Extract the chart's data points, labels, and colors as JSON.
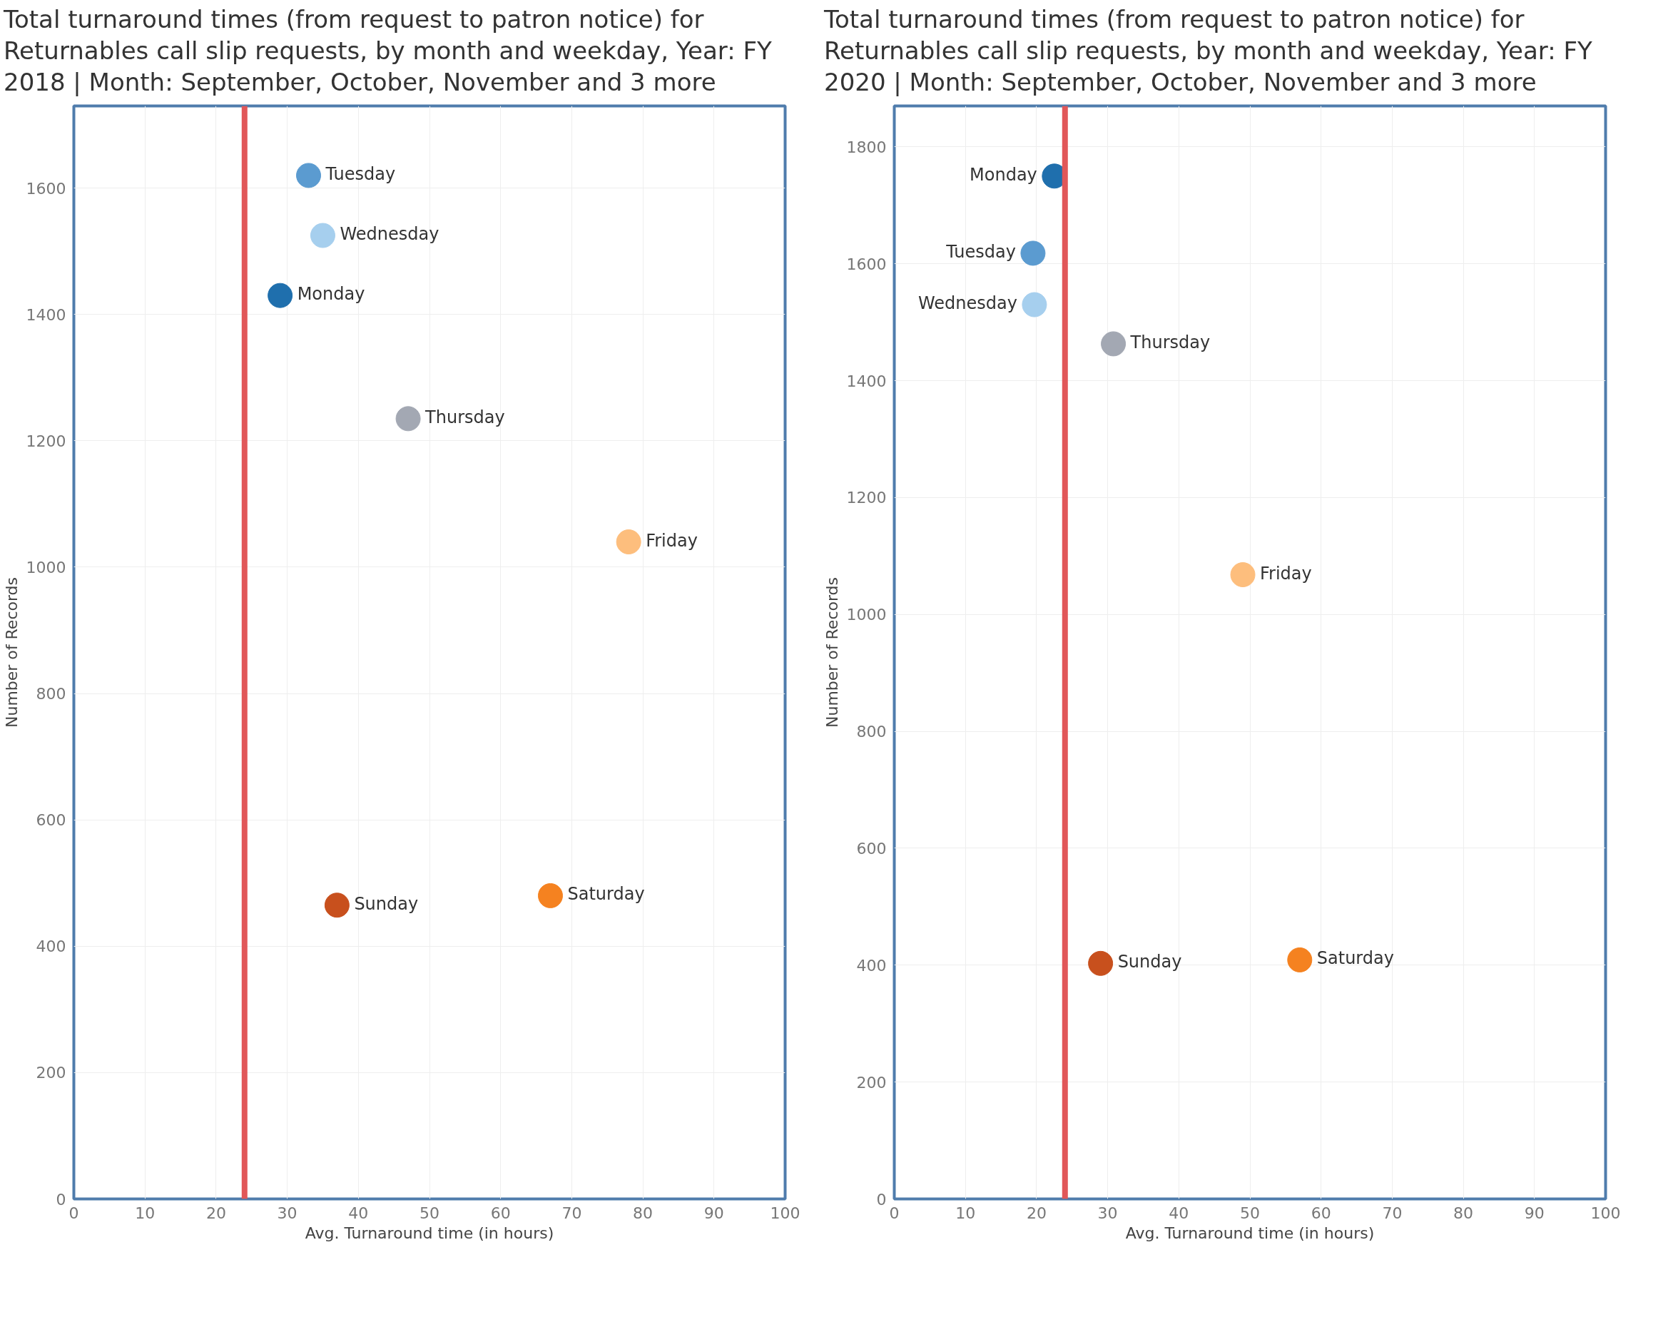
{
  "chart_data": [
    {
      "type": "scatter",
      "title": "Total turnaround times (from request to patron notice) for Returnables call slip requests, by month and weekday, Year: FY 2018 | Month: September, October, November and 3 more",
      "xlabel": "Avg. Turnaround time (in hours)",
      "ylabel": "Number of Records",
      "xlim": [
        0,
        100
      ],
      "ylim": [
        0,
        1730
      ],
      "xticks": [
        0,
        10,
        20,
        30,
        40,
        50,
        60,
        70,
        80,
        90,
        100
      ],
      "yticks": [
        0,
        200,
        400,
        600,
        800,
        1000,
        1200,
        1400,
        1600
      ],
      "grid": true,
      "marker": "circle",
      "ref_lines": [
        {
          "axis": "x",
          "value": 24,
          "color": "#e15759"
        }
      ],
      "series": [
        {
          "name": "Monday",
          "color": "#1f6fad",
          "x": [
            29
          ],
          "values": [
            1430
          ]
        },
        {
          "name": "Tuesday",
          "color": "#5b9bd0",
          "x": [
            33
          ],
          "values": [
            1620
          ]
        },
        {
          "name": "Wednesday",
          "color": "#a6cfee",
          "x": [
            35
          ],
          "values": [
            1525
          ]
        },
        {
          "name": "Thursday",
          "color": "#a3a8b3",
          "x": [
            47
          ],
          "values": [
            1235
          ]
        },
        {
          "name": "Friday",
          "color": "#fdbe7d",
          "x": [
            78
          ],
          "values": [
            1040
          ]
        },
        {
          "name": "Saturday",
          "color": "#f58220",
          "x": [
            67
          ],
          "values": [
            480
          ]
        },
        {
          "name": "Sunday",
          "color": "#c8501d",
          "x": [
            37
          ],
          "values": [
            465
          ]
        }
      ]
    },
    {
      "type": "scatter",
      "title": "Total turnaround times (from request to patron notice) for Returnables call slip requests, by month and weekday, Year: FY 2020 | Month: September, October, November and 3 more",
      "xlabel": "Avg. Turnaround time (in hours)",
      "ylabel": "Number of Records",
      "xlim": [
        0,
        100
      ],
      "ylim": [
        0,
        1870
      ],
      "xticks": [
        0,
        10,
        20,
        30,
        40,
        50,
        60,
        70,
        80,
        90,
        100
      ],
      "yticks": [
        0,
        200,
        400,
        600,
        800,
        1000,
        1200,
        1400,
        1600,
        1800
      ],
      "grid": true,
      "marker": "circle",
      "ref_lines": [
        {
          "axis": "x",
          "value": 24,
          "color": "#e15759"
        }
      ],
      "series": [
        {
          "name": "Monday",
          "color": "#1f6fad",
          "x": [
            22.5
          ],
          "values": [
            1750
          ]
        },
        {
          "name": "Tuesday",
          "color": "#5b9bd0",
          "x": [
            19.5
          ],
          "values": [
            1618
          ]
        },
        {
          "name": "Wednesday",
          "color": "#a6cfee",
          "x": [
            19.7
          ],
          "values": [
            1530
          ]
        },
        {
          "name": "Thursday",
          "color": "#a3a8b3",
          "x": [
            30.8
          ],
          "values": [
            1463
          ]
        },
        {
          "name": "Friday",
          "color": "#fdbe7d",
          "x": [
            49
          ],
          "values": [
            1068
          ]
        },
        {
          "name": "Saturday",
          "color": "#f58220",
          "x": [
            57
          ],
          "values": [
            409
          ]
        },
        {
          "name": "Sunday",
          "color": "#c8501d",
          "x": [
            29
          ],
          "values": [
            403
          ]
        }
      ]
    }
  ]
}
